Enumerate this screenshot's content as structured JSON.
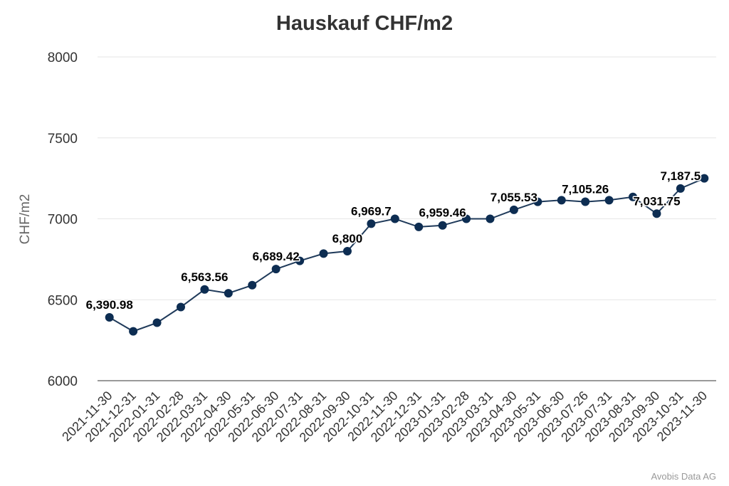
{
  "chart_data": {
    "type": "line",
    "title": "Hauskauf CHF/m2",
    "xlabel": "",
    "ylabel": "CHF/m2",
    "ylim": [
      6000,
      8000
    ],
    "yticks": [
      "6000",
      "6500",
      "7000",
      "7500",
      "8000"
    ],
    "grid": true,
    "legend": "none",
    "line_color": "#1f3a5a",
    "marker_color": "#0d2d52",
    "categories": [
      "2021-11-30",
      "2021-12-31",
      "2022-01-31",
      "2022-02-28",
      "2022-03-31",
      "2022-04-30",
      "2022-05-31",
      "2022-06-30",
      "2022-07-31",
      "2022-08-31",
      "2022-09-30",
      "2022-10-31",
      "2022-11-30",
      "2022-12-31",
      "2023-01-31",
      "2023-02-28",
      "2023-03-31",
      "2023-04-30",
      "2023-05-31",
      "2023-06-30",
      "2023-07-26",
      "2023-07-31",
      "2023-08-31",
      "2023-09-30",
      "2023-10-31",
      "2023-11-30"
    ],
    "series": [
      {
        "values": [
          6390.98,
          6305,
          6358,
          6455,
          6563.56,
          6540,
          6590,
          6689.42,
          6740,
          6785,
          6800,
          6969.7,
          7000,
          6950,
          6959.46,
          7000,
          7000,
          7055.53,
          7105,
          7115,
          7105.26,
          7115,
          7135,
          7031.75,
          7187.5,
          7250
        ],
        "data_labels": [
          {
            "index": 0,
            "text": "6,390.98"
          },
          {
            "index": 4,
            "text": "6,563.56"
          },
          {
            "index": 7,
            "text": "6,689.42"
          },
          {
            "index": 10,
            "text": "6,800"
          },
          {
            "index": 11,
            "text": "6,969.7"
          },
          {
            "index": 14,
            "text": "6,959.46"
          },
          {
            "index": 17,
            "text": "7,055.53"
          },
          {
            "index": 20,
            "text": "7,105.26"
          },
          {
            "index": 23,
            "text": "7,031.75"
          },
          {
            "index": 24,
            "text": "7,187.5"
          }
        ]
      }
    ]
  },
  "credit": "Avobis Data AG"
}
